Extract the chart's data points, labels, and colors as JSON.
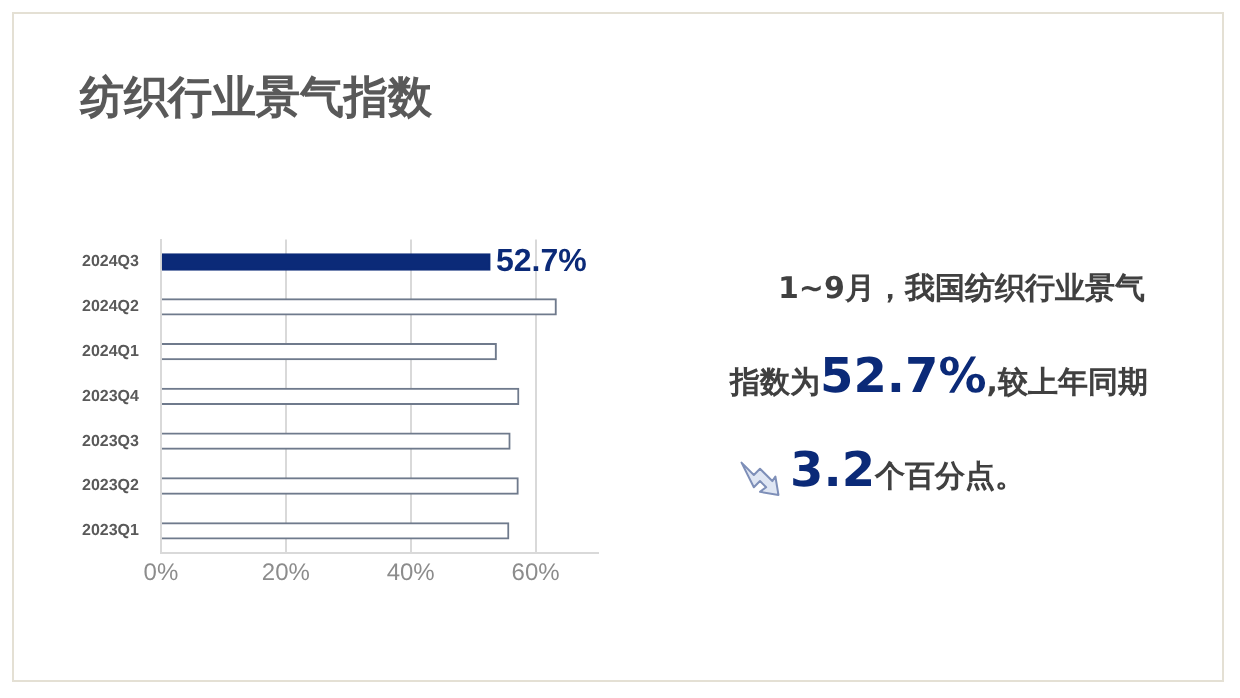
{
  "chart_data": {
    "type": "bar",
    "orientation": "horizontal",
    "title": "纺织行业景气指数",
    "categories": [
      "2024Q3",
      "2024Q2",
      "2024Q1",
      "2023Q4",
      "2023Q3",
      "2023Q2",
      "2023Q1"
    ],
    "values": [
      52.7,
      63.3,
      53.7,
      57.3,
      55.9,
      57.2,
      55.7
    ],
    "colors": [
      "#0b2a78",
      "#ffffff",
      "#ffffff",
      "#ffffff",
      "#ffffff",
      "#ffffff",
      "#ffffff"
    ],
    "value_labels": [
      "52.7%",
      null,
      null,
      null,
      null,
      null,
      null
    ],
    "xlim": [
      0,
      70
    ],
    "xticks": [
      {
        "value": 0,
        "label": "0%"
      },
      {
        "value": 20,
        "label": "20%"
      },
      {
        "value": 40,
        "label": "40%"
      },
      {
        "value": 60,
        "label": "60%"
      }
    ],
    "grid": "x",
    "legend": false,
    "annotations": [
      "1~9月，我国纺织行业景气指数为52.7%,较上年同期 3.2个百分点。"
    ]
  }
}
